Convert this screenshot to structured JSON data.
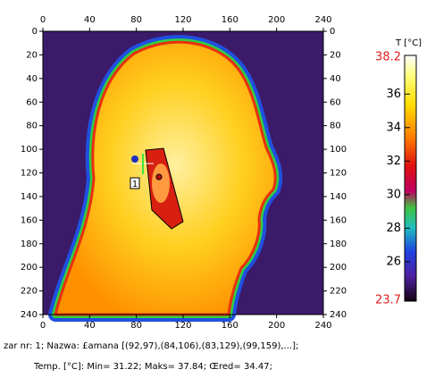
{
  "axes": {
    "xticks": [
      0,
      40,
      80,
      120,
      160,
      200,
      240
    ],
    "yticks": [
      0,
      20,
      40,
      60,
      80,
      100,
      120,
      140,
      160,
      180,
      200,
      220,
      240
    ],
    "xlim": [
      0,
      240
    ],
    "ylim": [
      0,
      240
    ]
  },
  "colorbar": {
    "label": "T [°C]",
    "max": 38.2,
    "min": 23.7,
    "ticks": [
      36,
      34,
      32,
      30,
      28,
      26
    ]
  },
  "marker": "1",
  "info": {
    "line1": "zar nr: 1; Nazwa: £amana [(92,97),(84,106),(83,129),(99,159),...];",
    "line2": "Temp. [°C]: Min= 31.22; Maks= 37.84; Œred= 34.47;"
  }
}
